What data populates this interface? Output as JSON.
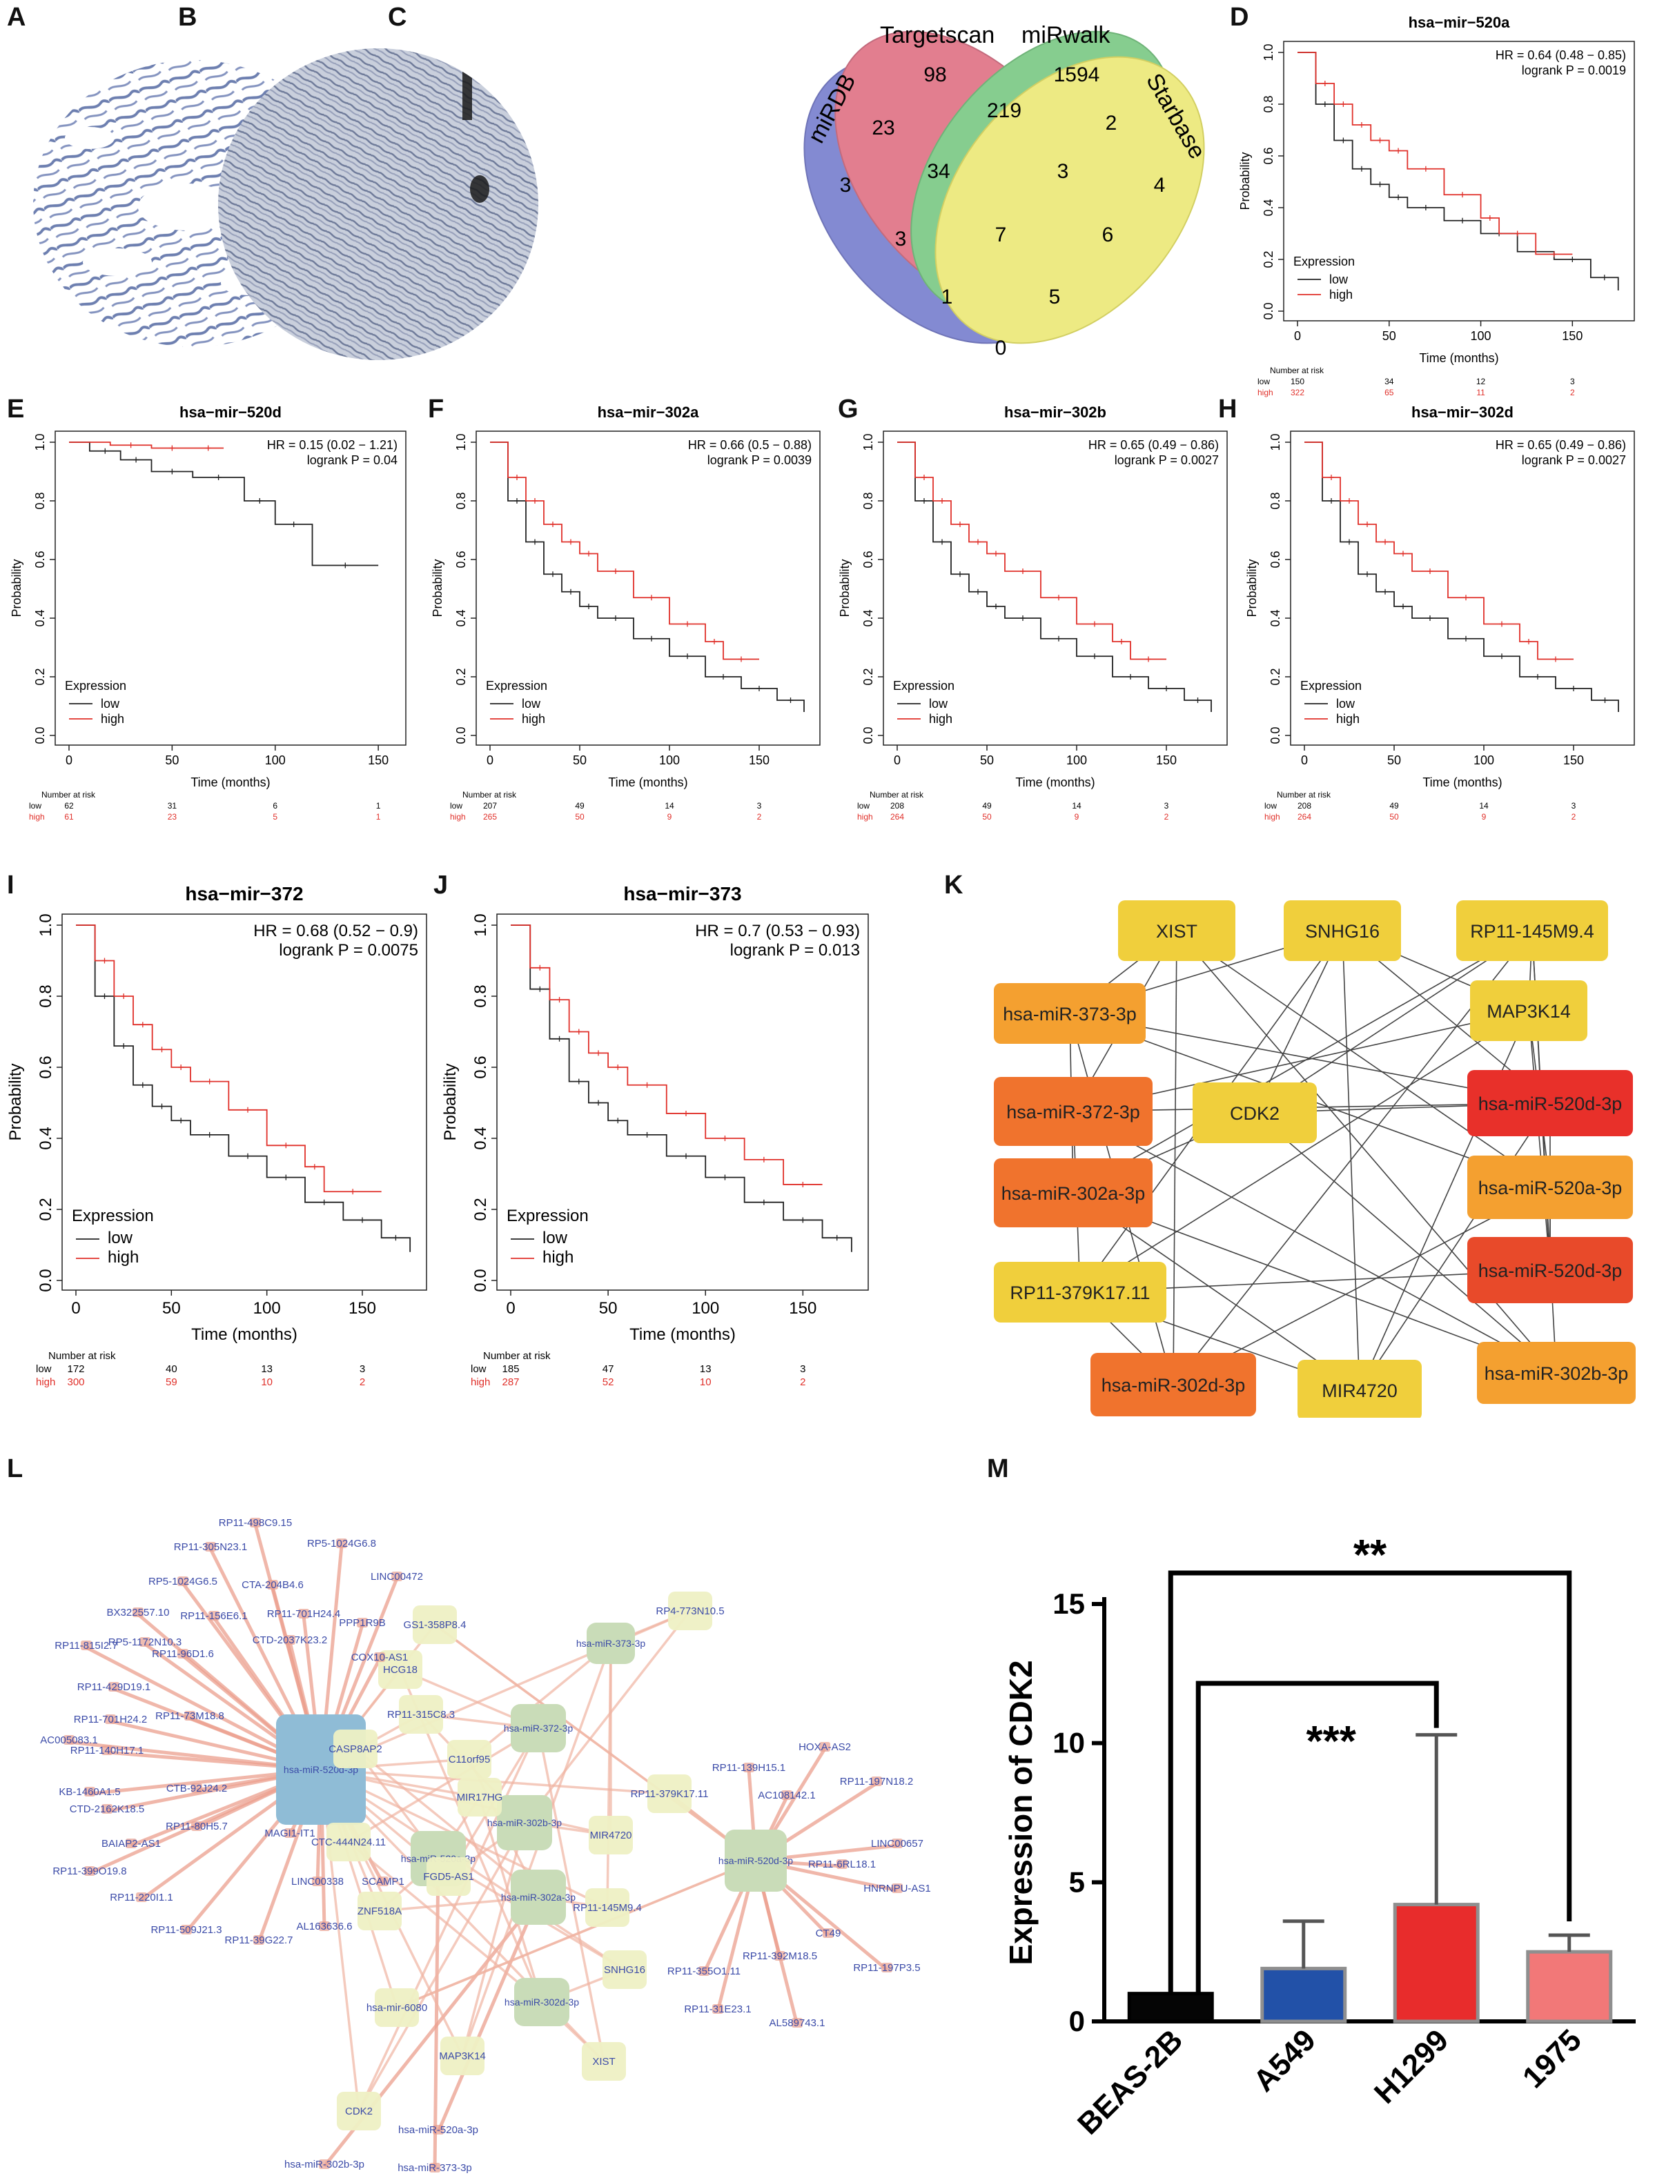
{
  "panels": {
    "a": {
      "label": "A"
    },
    "b": {
      "label": "B"
    },
    "c": {
      "label": "C"
    },
    "d": {
      "label": "D"
    },
    "e": {
      "label": "E"
    },
    "f": {
      "label": "F"
    },
    "g": {
      "label": "G"
    },
    "h": {
      "label": "H"
    },
    "i": {
      "label": "I"
    },
    "j": {
      "label": "J"
    },
    "k": {
      "label": "K"
    },
    "l": {
      "label": "L"
    },
    "m": {
      "label": "M"
    }
  },
  "venn": {
    "sets": [
      "Targetscan",
      "miRwalk",
      "miRDB",
      "Starbase"
    ],
    "colors": {
      "Targetscan": "#d9536a",
      "miRwalk": "#5ebd6a",
      "miRDB": "#5a63c4",
      "Starbase": "#e8e45a"
    },
    "counts": {
      "ts_only": "98",
      "mw_only": "1594",
      "md_only": "3",
      "sb_only": "4",
      "ts_md": "23",
      "ts_mw": "219",
      "mw_sb": "2",
      "ts_mw_md": "34",
      "ts_mw_sb": "3",
      "md_mw": "3",
      "all4": "7",
      "ts_sb": "6",
      "md_mw_sb": "1",
      "ts_md_sb": "5",
      "md_sb": "0"
    }
  },
  "km_common": {
    "ylabel": "Probability",
    "xlabel": "Time (months)",
    "legend_title": "Expression",
    "legend_low": "low",
    "legend_high": "high",
    "risk_title": "Number at risk",
    "risk_low": "low",
    "risk_high": "high",
    "yticks": [
      "0.0",
      "0.2",
      "0.4",
      "0.6",
      "0.8",
      "1.0"
    ],
    "xticks": [
      "0",
      "50",
      "100",
      "150"
    ],
    "low_color": "#222222",
    "high_color": "#e0302a"
  },
  "chart_data": [
    {
      "id": "D",
      "type": "line",
      "title": "hsa−mir−520a",
      "hr": "HR = 0.64 (0.48 − 0.85)",
      "logrank": "logrank P = 0.0019",
      "xlim": [
        0,
        180
      ],
      "ylim": [
        0,
        1
      ],
      "series": [
        {
          "name": "low",
          "x": [
            0,
            10,
            20,
            30,
            40,
            50,
            60,
            80,
            100,
            120,
            140,
            160,
            175
          ],
          "y": [
            1.0,
            0.8,
            0.66,
            0.55,
            0.49,
            0.44,
            0.4,
            0.35,
            0.3,
            0.23,
            0.2,
            0.13,
            0.08
          ]
        },
        {
          "name": "high",
          "x": [
            0,
            10,
            20,
            30,
            40,
            50,
            60,
            80,
            100,
            110,
            130,
            150
          ],
          "y": [
            1.0,
            0.88,
            0.8,
            0.72,
            0.66,
            0.62,
            0.55,
            0.45,
            0.36,
            0.3,
            0.22,
            0.22
          ]
        }
      ],
      "risk": {
        "low": [
          "150",
          "34",
          "12",
          "3"
        ],
        "high": [
          "322",
          "65",
          "11",
          "2"
        ]
      }
    },
    {
      "id": "E",
      "type": "line",
      "title": "hsa−mir−520d",
      "hr": "HR = 0.15 (0.02 − 1.21)",
      "logrank": "logrank P = 0.04",
      "xlim": [
        0,
        160
      ],
      "ylim": [
        0,
        1
      ],
      "series": [
        {
          "name": "low",
          "x": [
            0,
            10,
            25,
            40,
            60,
            85,
            100,
            118,
            150
          ],
          "y": [
            1.0,
            0.97,
            0.94,
            0.9,
            0.88,
            0.8,
            0.72,
            0.58,
            0.58
          ]
        },
        {
          "name": "high",
          "x": [
            0,
            20,
            40,
            60,
            75
          ],
          "y": [
            1.0,
            0.99,
            0.98,
            0.98,
            0.98
          ]
        }
      ],
      "risk": {
        "low": [
          "62",
          "31",
          "6",
          "1"
        ],
        "high": [
          "61",
          "23",
          "5",
          "1"
        ]
      }
    },
    {
      "id": "F",
      "type": "line",
      "title": "hsa−mir−302a",
      "hr": "HR = 0.66 (0.5 − 0.88)",
      "logrank": "logrank P = 0.0039",
      "xlim": [
        0,
        180
      ],
      "ylim": [
        0,
        1
      ],
      "series": [
        {
          "name": "low",
          "x": [
            0,
            10,
            20,
            30,
            40,
            50,
            60,
            80,
            100,
            120,
            140,
            160,
            175
          ],
          "y": [
            1.0,
            0.8,
            0.66,
            0.55,
            0.49,
            0.44,
            0.4,
            0.33,
            0.27,
            0.2,
            0.16,
            0.12,
            0.08
          ]
        },
        {
          "name": "high",
          "x": [
            0,
            10,
            20,
            30,
            40,
            50,
            60,
            80,
            100,
            120,
            130,
            150
          ],
          "y": [
            1.0,
            0.88,
            0.8,
            0.72,
            0.66,
            0.62,
            0.56,
            0.47,
            0.38,
            0.32,
            0.26,
            0.26
          ]
        }
      ],
      "risk": {
        "low": [
          "207",
          "49",
          "14",
          "3"
        ],
        "high": [
          "265",
          "50",
          "9",
          "2"
        ]
      }
    },
    {
      "id": "G",
      "type": "line",
      "title": "hsa−mir−302b",
      "hr": "HR = 0.65 (0.49 − 0.86)",
      "logrank": "logrank P = 0.0027",
      "xlim": [
        0,
        180
      ],
      "ylim": [
        0,
        1
      ],
      "series": [
        {
          "name": "low",
          "x": [
            0,
            10,
            20,
            30,
            40,
            50,
            60,
            80,
            100,
            120,
            140,
            160,
            175
          ],
          "y": [
            1.0,
            0.8,
            0.66,
            0.55,
            0.49,
            0.44,
            0.4,
            0.33,
            0.27,
            0.2,
            0.16,
            0.12,
            0.08
          ]
        },
        {
          "name": "high",
          "x": [
            0,
            10,
            20,
            30,
            40,
            50,
            60,
            80,
            100,
            120,
            130,
            150
          ],
          "y": [
            1.0,
            0.88,
            0.8,
            0.72,
            0.66,
            0.62,
            0.56,
            0.47,
            0.38,
            0.32,
            0.26,
            0.26
          ]
        }
      ],
      "risk": {
        "low": [
          "208",
          "49",
          "14",
          "3"
        ],
        "high": [
          "264",
          "50",
          "9",
          "2"
        ]
      }
    },
    {
      "id": "H",
      "type": "line",
      "title": "hsa−mir−302d",
      "hr": "HR = 0.65 (0.49 − 0.86)",
      "logrank": "logrank P = 0.0027",
      "xlim": [
        0,
        180
      ],
      "ylim": [
        0,
        1
      ],
      "series": [
        {
          "name": "low",
          "x": [
            0,
            10,
            20,
            30,
            40,
            50,
            60,
            80,
            100,
            120,
            140,
            160,
            175
          ],
          "y": [
            1.0,
            0.8,
            0.66,
            0.55,
            0.49,
            0.44,
            0.4,
            0.33,
            0.27,
            0.2,
            0.16,
            0.12,
            0.08
          ]
        },
        {
          "name": "high",
          "x": [
            0,
            10,
            20,
            30,
            40,
            50,
            60,
            80,
            100,
            120,
            130,
            150
          ],
          "y": [
            1.0,
            0.88,
            0.8,
            0.72,
            0.66,
            0.62,
            0.56,
            0.47,
            0.38,
            0.32,
            0.26,
            0.26
          ]
        }
      ],
      "risk": {
        "low": [
          "208",
          "49",
          "14",
          "3"
        ],
        "high": [
          "264",
          "50",
          "9",
          "2"
        ]
      }
    },
    {
      "id": "I",
      "type": "line",
      "title": "hsa−mir−372",
      "hr": "HR = 0.68 (0.52 − 0.9)",
      "logrank": "logrank P = 0.0075",
      "xlim": [
        0,
        180
      ],
      "ylim": [
        0,
        1
      ],
      "series": [
        {
          "name": "low",
          "x": [
            0,
            10,
            20,
            30,
            40,
            50,
            60,
            80,
            100,
            120,
            140,
            160,
            175
          ],
          "y": [
            1.0,
            0.8,
            0.66,
            0.55,
            0.49,
            0.45,
            0.41,
            0.35,
            0.29,
            0.22,
            0.17,
            0.12,
            0.08
          ]
        },
        {
          "name": "high",
          "x": [
            0,
            10,
            20,
            30,
            40,
            50,
            60,
            80,
            100,
            120,
            130,
            160
          ],
          "y": [
            1.0,
            0.9,
            0.8,
            0.72,
            0.65,
            0.6,
            0.56,
            0.48,
            0.38,
            0.32,
            0.25,
            0.25
          ]
        }
      ],
      "risk": {
        "low": [
          "172",
          "40",
          "13",
          "3"
        ],
        "high": [
          "300",
          "59",
          "10",
          "2"
        ]
      }
    },
    {
      "id": "J",
      "type": "line",
      "title": "hsa−mir−373",
      "hr": "HR = 0.7 (0.53 − 0.93)",
      "logrank": "logrank P = 0.013",
      "xlim": [
        0,
        180
      ],
      "ylim": [
        0,
        1
      ],
      "series": [
        {
          "name": "low",
          "x": [
            0,
            10,
            20,
            30,
            40,
            50,
            60,
            80,
            100,
            120,
            140,
            160,
            175
          ],
          "y": [
            1.0,
            0.82,
            0.68,
            0.56,
            0.5,
            0.45,
            0.41,
            0.35,
            0.29,
            0.22,
            0.17,
            0.12,
            0.08
          ]
        },
        {
          "name": "high",
          "x": [
            0,
            10,
            20,
            30,
            40,
            50,
            60,
            80,
            100,
            120,
            140,
            160
          ],
          "y": [
            1.0,
            0.88,
            0.79,
            0.7,
            0.64,
            0.6,
            0.55,
            0.47,
            0.4,
            0.34,
            0.27,
            0.27
          ]
        }
      ],
      "risk": {
        "low": [
          "185",
          "47",
          "13",
          "3"
        ],
        "high": [
          "287",
          "52",
          "10",
          "2"
        ]
      }
    },
    {
      "id": "M",
      "type": "bar",
      "title": "",
      "ylabel": "Expression of CDK2",
      "xlabel": "",
      "categories": [
        "BEAS-2B",
        "A549",
        "H1299",
        "1975"
      ],
      "values": [
        1.0,
        1.9,
        4.2,
        2.5
      ],
      "errors": [
        0.0,
        1.7,
        6.1,
        0.6
      ],
      "colors": [
        "#050505",
        "#2251a8",
        "#e82c2c",
        "#f27878"
      ],
      "ylim": [
        0,
        15
      ],
      "yticks": [
        "0",
        "5",
        "10",
        "15"
      ],
      "significance": [
        {
          "from": "BEAS-2B",
          "to": "1975",
          "label": "**"
        },
        {
          "from": "BEAS-2B",
          "to": "H1299",
          "label": "***"
        }
      ]
    }
  ],
  "network_k": {
    "nodes": [
      {
        "id": "XIST",
        "label": "XIST",
        "color": "#f0cf3c"
      },
      {
        "id": "SNHG16",
        "label": "SNHG16",
        "color": "#f0cf3c"
      },
      {
        "id": "RP11-145M9.4",
        "label": "RP11-145M9.4",
        "color": "#f0cf3c"
      },
      {
        "id": "MAP3K14",
        "label": "MAP3K14",
        "color": "#f0cf3c"
      },
      {
        "id": "hsa-miR-373-3p",
        "label": "hsa-miR-373-3p",
        "color": "#f4a030"
      },
      {
        "id": "hsa-miR-372-3p",
        "label": "hsa-miR-372-3p",
        "color": "#f0732d"
      },
      {
        "id": "hsa-miR-302a-3p",
        "label": "hsa-miR-302a-3p",
        "color": "#f0732d"
      },
      {
        "id": "RP11-379K17.11",
        "label": "RP11-379K17.11",
        "color": "#f0cf3c"
      },
      {
        "id": "hsa-miR-302d-3p",
        "label": "hsa-miR-302d-3p",
        "color": "#f0732d"
      },
      {
        "id": "MIR4720",
        "label": "MIR4720",
        "color": "#f0cf3c"
      },
      {
        "id": "hsa-miR-302b-3p",
        "label": "hsa-miR-302b-3p",
        "color": "#f4a030"
      },
      {
        "id": "hsa-miR-520d-3p-a",
        "label": "hsa-miR-520d-3p",
        "color": "#e8302a"
      },
      {
        "id": "hsa-miR-520a-3p",
        "label": "hsa-miR-520a-3p",
        "color": "#f4a030"
      },
      {
        "id": "hsa-miR-520d-3p-b",
        "label": "hsa-miR-520d-3p",
        "color": "#e84a2a"
      },
      {
        "id": "CDK2",
        "label": "CDK2",
        "color": "#f0cf3c"
      }
    ]
  },
  "network_l": {
    "hubs": [
      {
        "id": "hsa-miR-520d-3p",
        "label": "hsa-miR-520d-3p",
        "color": "#8fbcd6"
      },
      {
        "id": "hsa-miR-520d-3p-2",
        "label": "hsa-miR-520d-3p",
        "color": "#c9dcb8"
      },
      {
        "id": "hsa-miR-373-3p",
        "label": "hsa-miR-373-3p",
        "color": "#c9dcb8"
      },
      {
        "id": "hsa-miR-372-3p",
        "label": "hsa-miR-372-3p",
        "color": "#c9dcb8"
      },
      {
        "id": "hsa-miR-302b-3p",
        "label": "hsa-miR-302b-3p",
        "color": "#c9dcb8"
      },
      {
        "id": "hsa-miR-520a-3p",
        "label": "hsa-miR-520a-3p",
        "color": "#c9dcb8"
      },
      {
        "id": "hsa-miR-302a-3p",
        "label": "hsa-miR-302a-3p",
        "color": "#c9dcb8"
      },
      {
        "id": "hsa-miR-302d-3p",
        "label": "hsa-miR-302d-3p",
        "color": "#c9dcb8"
      }
    ],
    "mids": [
      "GS1-358P8.4",
      "RP4-773N10.5",
      "HCG18",
      "RP11-315C8.3",
      "CASP8AP2",
      "C11orf95",
      "MIR17HG",
      "RP11-379K17.11",
      "MIR4720",
      "CTC-444N24.11",
      "FGD5-AS1",
      "ZNF518A",
      "RP11-145M9.4",
      "SNHG16",
      "hsa-mir-6080",
      "MAP3K14",
      "XIST",
      "CDK2"
    ],
    "leaves": [
      "RP11-498C9.15",
      "RP11-305N23.1",
      "RP5-1024G6.8",
      "RP5-1024G6.5",
      "CTA-204B4.6",
      "LINC00472",
      "BX322557.10",
      "RP11-156E6.1",
      "RP11-701H24.4",
      "PPP1R9B",
      "RP5-1172N10.3",
      "CTD-2037K23.2",
      "RP11-815I2.7",
      "RP11-96D1.6",
      "COX10-AS1",
      "RP11-429D19.1",
      "RP11-701H24.2",
      "RP11-73M18.8",
      "AC005083.1",
      "RP11-140H17.1",
      "KB-1460A1.5",
      "CTB-92J24.2",
      "CTD-2162K18.5",
      "RP11-80H5.7",
      "BAIAP2-AS1",
      "MAGI1-IT1",
      "RP11-399O19.8",
      "LINC00338",
      "SCAMP1",
      "RP11-220I1.1",
      "AL163636.6",
      "RP11-509J21.3",
      "RP11-39G22.7",
      "HOXA-AS2",
      "RP11-139H15.1",
      "RP11-197N18.2",
      "AC108142.1",
      "LINC00657",
      "RP11-6RL18.1",
      "HNRNPU-AS1",
      "CT49",
      "RP11-392M18.5",
      "RP11-355O1.11",
      "RP11-197P3.5",
      "RP11-31E23.1",
      "AL589743.1",
      "hsa-miR-520a-3p",
      "hsa-miR-302b-3p",
      "hsa-miR-373-3p"
    ]
  }
}
